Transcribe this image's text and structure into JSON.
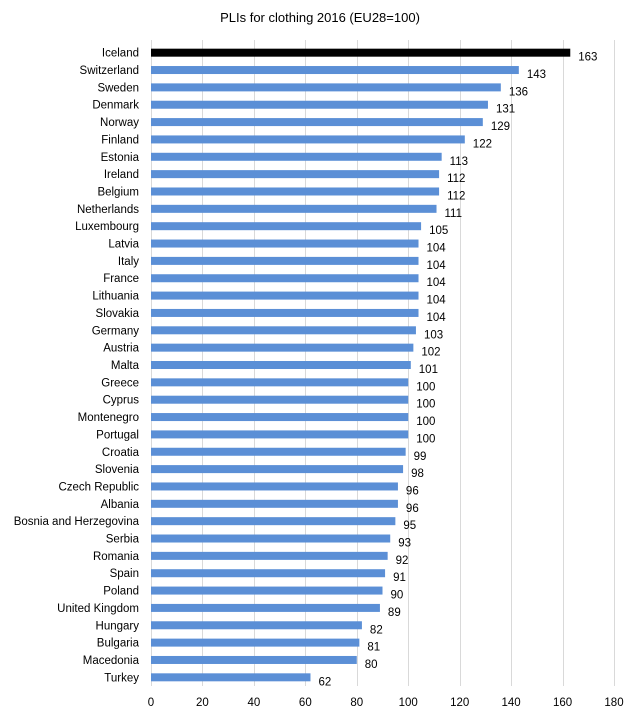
{
  "chart_data": {
    "type": "bar",
    "orientation": "horizontal",
    "title": "PLIs for clothing 2016 (EU28=100)",
    "xlabel": "",
    "ylabel": "",
    "xlim": [
      0,
      180
    ],
    "x_ticks": [
      "0",
      "20",
      "40",
      "60",
      "80",
      "100",
      "120",
      "140",
      "160",
      "180"
    ],
    "grid": "vertical",
    "legend": "none",
    "colors": {
      "default": "#5b8fd6",
      "highlight": "#000000"
    },
    "highlight_category": "Iceland",
    "categories": [
      "Iceland",
      "Switzerland",
      "Sweden",
      "Denmark",
      "Norway",
      "Finland",
      "Estonia",
      "Ireland",
      "Belgium",
      "Netherlands",
      "Luxembourg",
      "Latvia",
      "Italy",
      "France",
      "Lithuania",
      "Slovakia",
      "Germany",
      "Austria",
      "Malta",
      "Greece",
      "Cyprus",
      "Montenegro",
      "Portugal",
      "Croatia",
      "Slovenia",
      "Czech Republic",
      "Albania",
      "Bosnia and Herzegovina",
      "Serbia",
      "Romania",
      "Spain",
      "Poland",
      "United Kingdom",
      "Hungary",
      "Bulgaria",
      "Macedonia",
      "Turkey"
    ],
    "values": [
      163,
      143,
      136,
      131,
      129,
      122,
      113,
      112,
      112,
      111,
      105,
      104,
      104,
      104,
      104,
      104,
      103,
      102,
      101,
      100,
      100,
      100,
      100,
      99,
      98,
      96,
      96,
      95,
      93,
      92,
      91,
      90,
      89,
      82,
      81,
      80,
      62
    ]
  }
}
